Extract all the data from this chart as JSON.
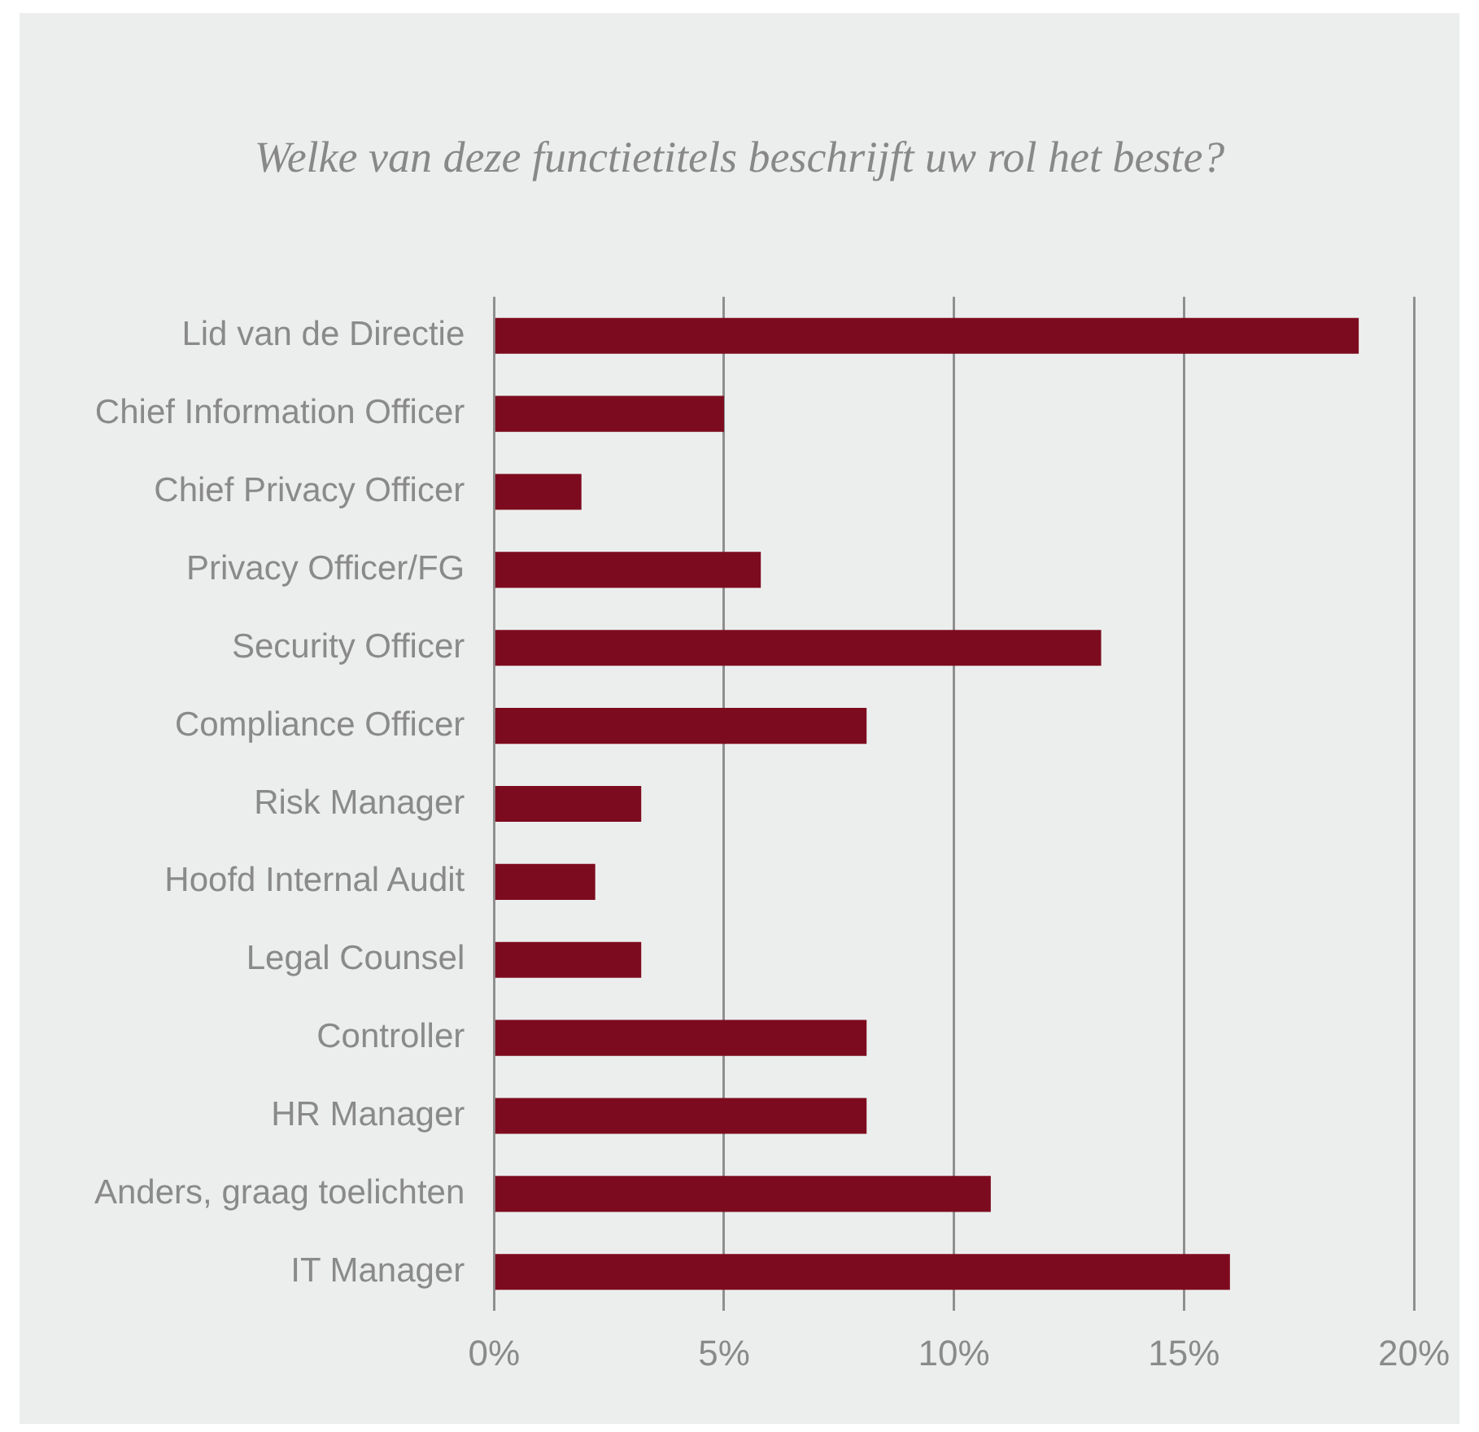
{
  "chart_data": {
    "type": "bar",
    "orientation": "horizontal",
    "title": "Welke van deze functietitels beschrijft uw rol het beste?",
    "categories": [
      "Lid van de Directie",
      "Chief Information Officer",
      "Chief Privacy Officer",
      "Privacy Officer/FG",
      "Security Officer",
      "Compliance Officer",
      "Risk Manager",
      "Hoofd Internal Audit",
      "Legal Counsel",
      "Controller",
      "HR Manager",
      "Anders, graag toelichten",
      "IT Manager"
    ],
    "values": [
      18.8,
      5.0,
      1.9,
      5.8,
      13.2,
      8.1,
      3.2,
      2.2,
      3.2,
      8.1,
      8.1,
      10.8,
      16.0
    ],
    "color": "#7d0b1f",
    "xlim": [
      0,
      20
    ],
    "xticks": [
      {
        "value": 0,
        "label": "0%"
      },
      {
        "value": 5,
        "label": "5%"
      },
      {
        "value": 10,
        "label": "10%"
      },
      {
        "value": 15,
        "label": "15%"
      },
      {
        "value": 20,
        "label": "20%"
      }
    ],
    "grid": "x",
    "legend": false
  }
}
